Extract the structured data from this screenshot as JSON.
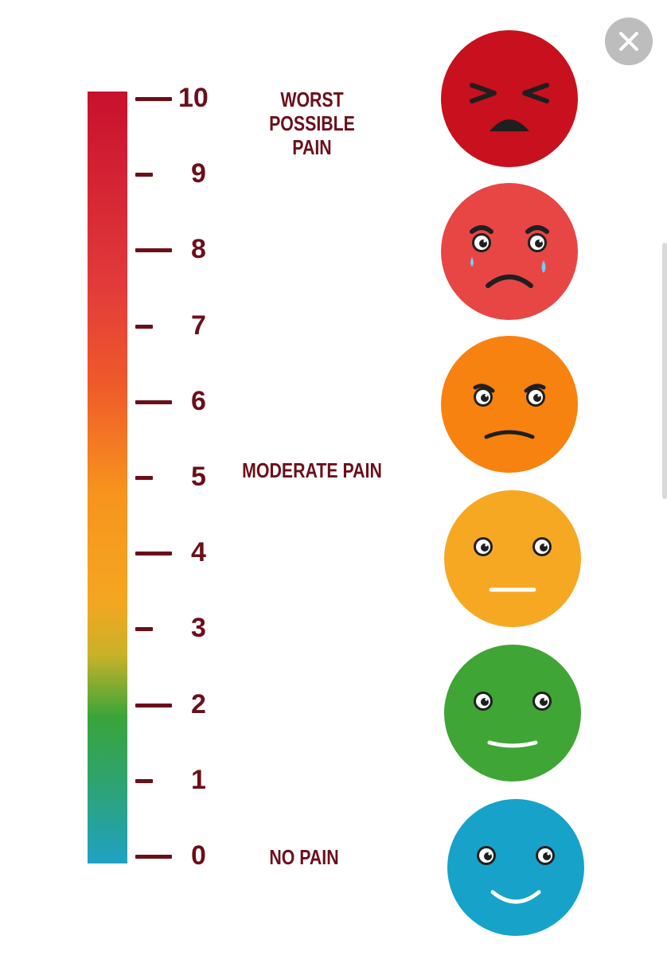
{
  "scale": {
    "min": 0,
    "max": 10,
    "ticks": [
      "0",
      "1",
      "2",
      "3",
      "4",
      "5",
      "6",
      "7",
      "8",
      "9",
      "10"
    ],
    "gradient_colors": [
      "#c8102e",
      "#f7941d",
      "#3aa43a",
      "#1fa2c3"
    ]
  },
  "labels": {
    "worst": [
      "WORST POSSIBLE",
      "PAIN"
    ],
    "moderate": "MODERATE PAIN",
    "none": "NO PAIN"
  },
  "faces": [
    {
      "name": "face-worst-pain-icon",
      "color": "#c8101e",
      "expression": "squinting-distressed"
    },
    {
      "name": "face-crying-icon",
      "color": "#e84545",
      "expression": "crying"
    },
    {
      "name": "face-sad-icon",
      "color": "#f7820f",
      "expression": "sad"
    },
    {
      "name": "face-neutral-icon",
      "color": "#f7a823",
      "expression": "neutral"
    },
    {
      "name": "face-slight-smile-icon",
      "color": "#3fa535",
      "expression": "slight-smile"
    },
    {
      "name": "face-happy-icon",
      "color": "#17a2c9",
      "expression": "happy"
    }
  ],
  "close_icon": "close-icon"
}
